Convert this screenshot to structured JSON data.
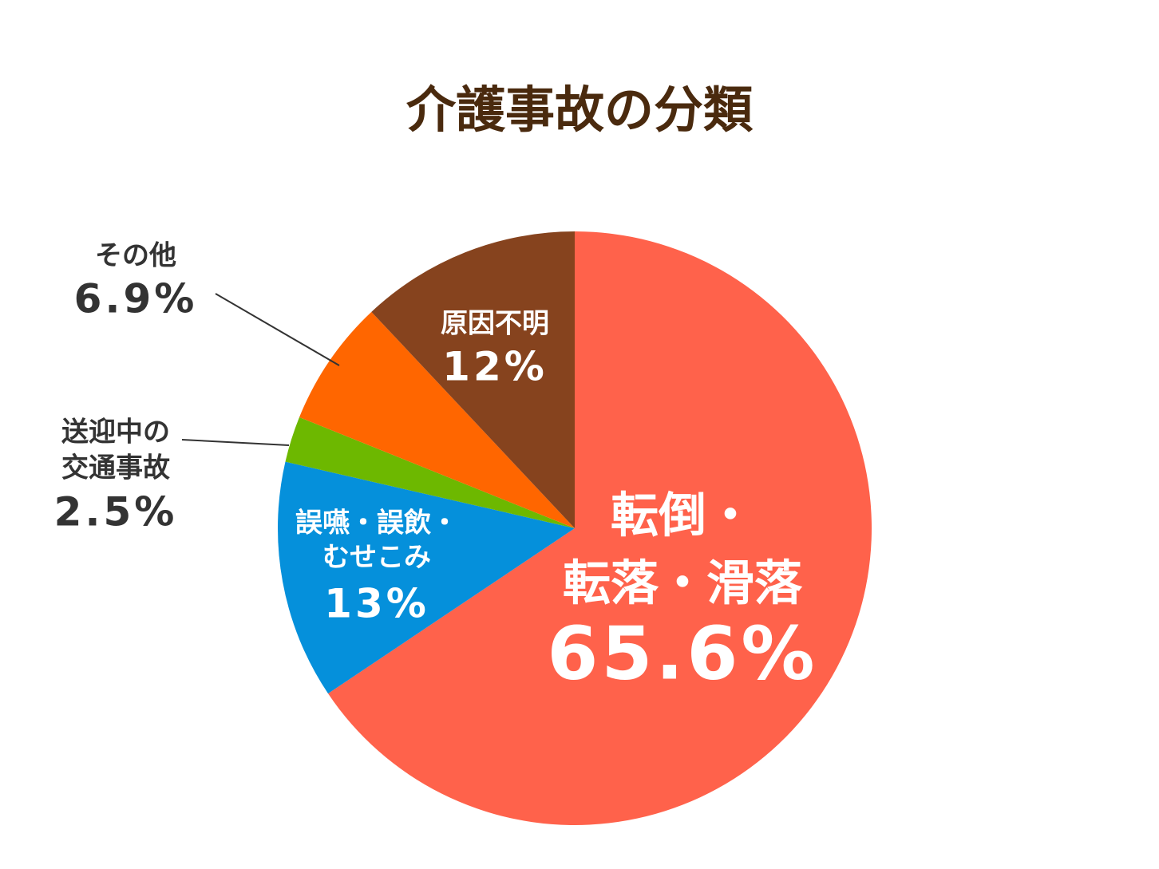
{
  "chart_data": {
    "type": "pie",
    "title": "介護事故の分類",
    "categories": [
      [
        "転倒・",
        "転落・滑落"
      ],
      [
        "誤嚥・誤飲・",
        "むせこみ"
      ],
      [
        "送迎中の",
        "交通事故"
      ],
      [
        "その他"
      ],
      [
        "原因不明"
      ]
    ],
    "values": [
      65.6,
      13,
      2.5,
      6.9,
      12
    ],
    "value_labels": [
      "65.6%",
      "13%",
      "2.5%",
      "6.9%",
      "12%"
    ],
    "colors": [
      "#ff624b",
      "#0590db",
      "#6db800",
      "#ff6600",
      "#86431e"
    ]
  }
}
